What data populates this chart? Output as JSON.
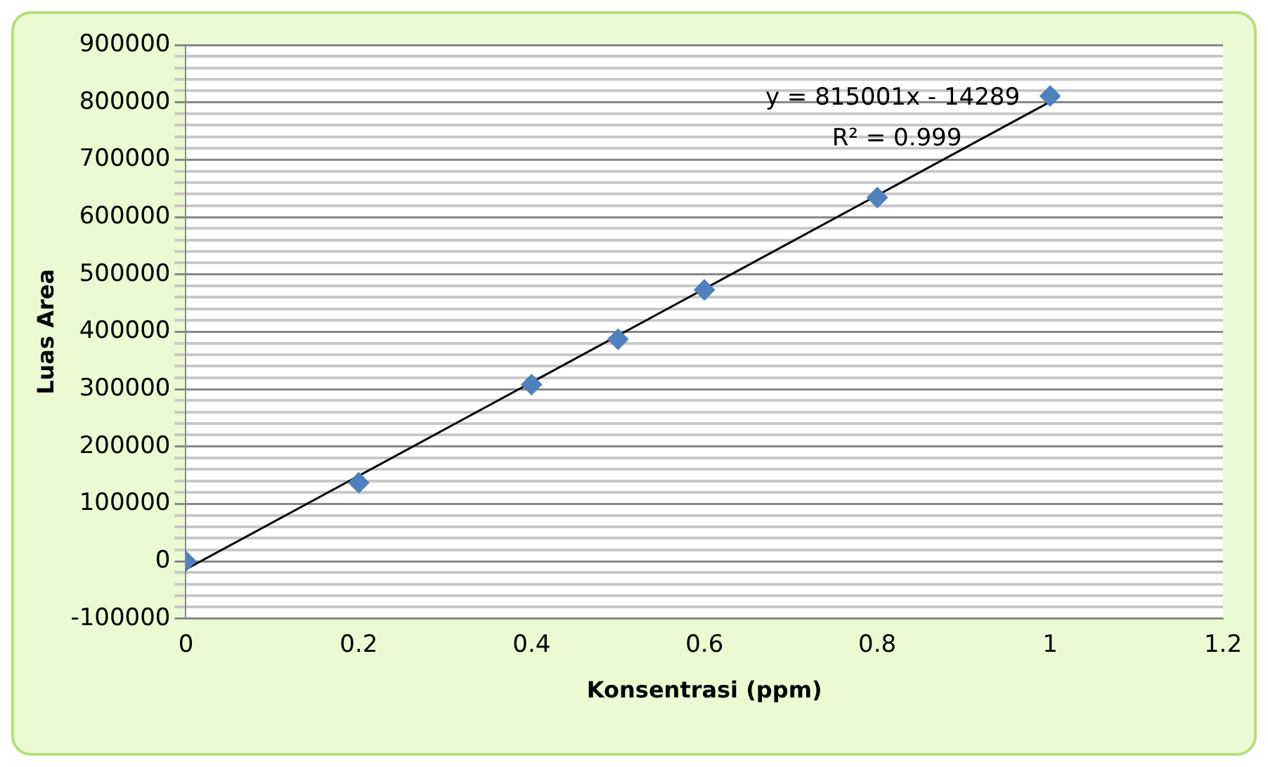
{
  "chart_data": {
    "type": "scatter",
    "xlabel": "Konsentrasi (ppm)",
    "ylabel": "Luas Area",
    "marker": "diamond",
    "grid": "y",
    "legend": false,
    "annotations": [
      "y = 815001x - 14289",
      "R² = 0.999"
    ],
    "series": [
      {
        "type": "scatter",
        "color": "#4f81bd",
        "x": [
          0,
          0.2,
          0.4,
          0.5,
          0.6,
          0.8,
          1
        ],
        "values": [
          0,
          137000,
          308000,
          387000,
          473000,
          634000,
          811000
        ]
      },
      {
        "type": "line",
        "color": "#000000",
        "marker": "none",
        "line_style": "solid",
        "x": [
          0,
          1
        ],
        "values": [
          -14000,
          801000
        ]
      }
    ],
    "xlim": [
      0,
      1.2
    ],
    "xticks": [
      0,
      0.2,
      0.4,
      0.6,
      0.8,
      1,
      1.2
    ],
    "ylim": [
      -100000,
      900000
    ],
    "yticks": [
      -100000,
      {
        "value": -80000,
        "label": null
      },
      {
        "value": -60000,
        "label": null
      },
      {
        "value": -40000,
        "label": null
      },
      {
        "value": -20000,
        "label": null
      },
      0,
      {
        "value": 20000,
        "label": null
      },
      {
        "value": 40000,
        "label": null
      },
      {
        "value": 60000,
        "label": null
      },
      {
        "value": 80000,
        "label": null
      },
      100000,
      {
        "value": 120000,
        "label": null
      },
      {
        "value": 140000,
        "label": null
      },
      {
        "value": 160000,
        "label": null
      },
      {
        "value": 180000,
        "label": null
      },
      200000,
      {
        "value": 220000,
        "label": null
      },
      {
        "value": 240000,
        "label": null
      },
      {
        "value": 260000,
        "label": null
      },
      {
        "value": 280000,
        "label": null
      },
      300000,
      {
        "value": 320000,
        "label": null
      },
      {
        "value": 340000,
        "label": null
      },
      {
        "value": 360000,
        "label": null
      },
      {
        "value": 380000,
        "label": null
      },
      400000,
      {
        "value": 420000,
        "label": null
      },
      {
        "value": 440000,
        "label": null
      },
      {
        "value": 460000,
        "label": null
      },
      {
        "value": 480000,
        "label": null
      },
      500000,
      {
        "value": 520000,
        "label": null
      },
      {
        "value": 540000,
        "label": null
      },
      {
        "value": 560000,
        "label": null
      },
      {
        "value": 580000,
        "label": null
      },
      600000,
      {
        "value": 620000,
        "label": null
      },
      {
        "value": 640000,
        "label": null
      },
      {
        "value": 660000,
        "label": null
      },
      {
        "value": 680000,
        "label": null
      },
      700000,
      {
        "value": 720000,
        "label": null
      },
      {
        "value": 740000,
        "label": null
      },
      {
        "value": 760000,
        "label": null
      },
      {
        "value": 780000,
        "label": null
      },
      800000,
      {
        "value": 820000,
        "label": null
      },
      {
        "value": 840000,
        "label": null
      },
      {
        "value": 860000,
        "label": null
      },
      {
        "value": 880000,
        "label": null
      },
      900000
    ]
  }
}
